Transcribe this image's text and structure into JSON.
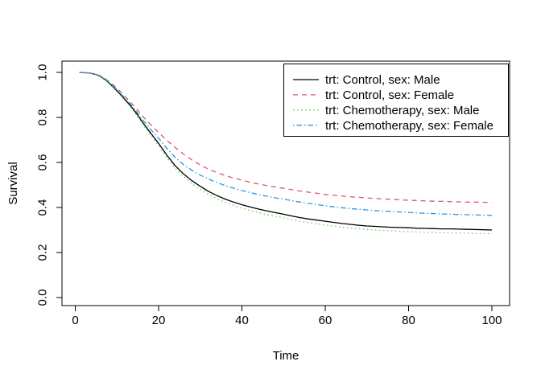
{
  "window": {
    "background": "#ffffff",
    "foreground": "#000000"
  },
  "chart_data": {
    "type": "line",
    "title": "",
    "xlabel": "Time",
    "ylabel": "Survival",
    "grid": false,
    "x_axis": {
      "range": [
        0,
        100
      ],
      "tick_values": [
        0,
        20,
        40,
        60,
        80,
        100
      ],
      "tick_labels": [
        "0",
        "20",
        "40",
        "60",
        "80",
        "100"
      ]
    },
    "y_axis": {
      "range": [
        0.0,
        1.0
      ],
      "tick_values": [
        0.0,
        0.2,
        0.4,
        0.6,
        0.8,
        1.0
      ],
      "tick_labels": [
        "0.0",
        "0.2",
        "0.4",
        "0.6",
        "0.8",
        "1.0"
      ]
    },
    "legend": {
      "position": "topright",
      "border": true,
      "background": "#ffffff"
    },
    "series": [
      {
        "name": "trt: Control, sex: Male",
        "color": "#000000",
        "linetype": "solid",
        "points": [
          [
            1,
            1.0
          ],
          [
            2,
            0.999
          ],
          [
            3,
            0.998
          ],
          [
            4,
            0.995
          ],
          [
            5,
            0.99
          ],
          [
            6,
            0.982
          ],
          [
            7,
            0.97
          ],
          [
            8,
            0.955
          ],
          [
            9,
            0.937
          ],
          [
            10,
            0.918
          ],
          [
            11,
            0.899
          ],
          [
            12,
            0.878
          ],
          [
            13,
            0.857
          ],
          [
            14,
            0.835
          ],
          [
            15,
            0.81
          ],
          [
            16,
            0.782
          ],
          [
            17,
            0.757
          ],
          [
            18,
            0.733
          ],
          [
            19,
            0.709
          ],
          [
            20,
            0.685
          ],
          [
            22,
            0.632
          ],
          [
            24,
            0.585
          ],
          [
            26,
            0.549
          ],
          [
            28,
            0.519
          ],
          [
            30,
            0.494
          ],
          [
            32,
            0.471
          ],
          [
            34,
            0.453
          ],
          [
            36,
            0.437
          ],
          [
            38,
            0.424
          ],
          [
            40,
            0.412
          ],
          [
            42,
            0.402
          ],
          [
            44,
            0.393
          ],
          [
            46,
            0.385
          ],
          [
            48,
            0.377
          ],
          [
            50,
            0.37
          ],
          [
            52,
            0.362
          ],
          [
            54,
            0.355
          ],
          [
            56,
            0.349
          ],
          [
            58,
            0.344
          ],
          [
            60,
            0.339
          ],
          [
            62,
            0.334
          ],
          [
            64,
            0.329
          ],
          [
            66,
            0.325
          ],
          [
            68,
            0.321
          ],
          [
            70,
            0.318
          ],
          [
            72,
            0.316
          ],
          [
            74,
            0.314
          ],
          [
            76,
            0.312
          ],
          [
            78,
            0.311
          ],
          [
            80,
            0.31
          ],
          [
            82,
            0.308
          ],
          [
            84,
            0.307
          ],
          [
            86,
            0.306
          ],
          [
            88,
            0.305
          ],
          [
            90,
            0.305
          ],
          [
            92,
            0.304
          ],
          [
            94,
            0.303
          ],
          [
            96,
            0.302
          ],
          [
            98,
            0.301
          ],
          [
            100,
            0.3
          ]
        ]
      },
      {
        "name": "trt: Control, sex: Female",
        "color": "#DF536B",
        "linetype": "dashed",
        "points": [
          [
            1,
            1.0
          ],
          [
            2,
            0.999
          ],
          [
            3,
            0.998
          ],
          [
            4,
            0.996
          ],
          [
            5,
            0.992
          ],
          [
            6,
            0.985
          ],
          [
            7,
            0.974
          ],
          [
            8,
            0.961
          ],
          [
            9,
            0.946
          ],
          [
            10,
            0.929
          ],
          [
            11,
            0.911
          ],
          [
            12,
            0.892
          ],
          [
            13,
            0.873
          ],
          [
            14,
            0.853
          ],
          [
            15,
            0.832
          ],
          [
            16,
            0.809
          ],
          [
            17,
            0.789
          ],
          [
            18,
            0.77
          ],
          [
            19,
            0.751
          ],
          [
            20,
            0.733
          ],
          [
            22,
            0.698
          ],
          [
            24,
            0.666
          ],
          [
            26,
            0.637
          ],
          [
            28,
            0.611
          ],
          [
            30,
            0.589
          ],
          [
            32,
            0.57
          ],
          [
            34,
            0.555
          ],
          [
            36,
            0.542
          ],
          [
            38,
            0.531
          ],
          [
            40,
            0.521
          ],
          [
            42,
            0.512
          ],
          [
            44,
            0.504
          ],
          [
            46,
            0.497
          ],
          [
            48,
            0.491
          ],
          [
            50,
            0.485
          ],
          [
            52,
            0.479
          ],
          [
            54,
            0.473
          ],
          [
            56,
            0.468
          ],
          [
            58,
            0.463
          ],
          [
            60,
            0.458
          ],
          [
            62,
            0.454
          ],
          [
            64,
            0.451
          ],
          [
            66,
            0.448
          ],
          [
            68,
            0.445
          ],
          [
            70,
            0.442
          ],
          [
            72,
            0.44
          ],
          [
            74,
            0.438
          ],
          [
            76,
            0.436
          ],
          [
            78,
            0.434
          ],
          [
            80,
            0.432
          ],
          [
            82,
            0.431
          ],
          [
            84,
            0.429
          ],
          [
            86,
            0.428
          ],
          [
            88,
            0.427
          ],
          [
            90,
            0.426
          ],
          [
            92,
            0.425
          ],
          [
            94,
            0.424
          ],
          [
            96,
            0.424
          ],
          [
            98,
            0.423
          ],
          [
            100,
            0.422
          ]
        ]
      },
      {
        "name": "trt: Chemotherapy, sex: Male",
        "color": "#61D04F",
        "linetype": "dotted",
        "points": [
          [
            1,
            1.0
          ],
          [
            2,
            0.999
          ],
          [
            3,
            0.997
          ],
          [
            4,
            0.994
          ],
          [
            5,
            0.989
          ],
          [
            6,
            0.98
          ],
          [
            7,
            0.968
          ],
          [
            8,
            0.952
          ],
          [
            9,
            0.934
          ],
          [
            10,
            0.914
          ],
          [
            11,
            0.894
          ],
          [
            12,
            0.873
          ],
          [
            13,
            0.851
          ],
          [
            14,
            0.828
          ],
          [
            15,
            0.803
          ],
          [
            16,
            0.775
          ],
          [
            17,
            0.749
          ],
          [
            18,
            0.724
          ],
          [
            19,
            0.699
          ],
          [
            20,
            0.675
          ],
          [
            22,
            0.622
          ],
          [
            24,
            0.574
          ],
          [
            26,
            0.537
          ],
          [
            28,
            0.506
          ],
          [
            30,
            0.48
          ],
          [
            32,
            0.457
          ],
          [
            34,
            0.439
          ],
          [
            36,
            0.422
          ],
          [
            38,
            0.409
          ],
          [
            40,
            0.397
          ],
          [
            42,
            0.386
          ],
          [
            44,
            0.377
          ],
          [
            46,
            0.368
          ],
          [
            48,
            0.361
          ],
          [
            50,
            0.354
          ],
          [
            52,
            0.346
          ],
          [
            54,
            0.339
          ],
          [
            56,
            0.333
          ],
          [
            58,
            0.327
          ],
          [
            60,
            0.322
          ],
          [
            62,
            0.317
          ],
          [
            64,
            0.312
          ],
          [
            66,
            0.308
          ],
          [
            68,
            0.305
          ],
          [
            70,
            0.302
          ],
          [
            72,
            0.3
          ],
          [
            74,
            0.298
          ],
          [
            76,
            0.296
          ],
          [
            78,
            0.294
          ],
          [
            80,
            0.293
          ],
          [
            82,
            0.291
          ],
          [
            84,
            0.29
          ],
          [
            86,
            0.289
          ],
          [
            88,
            0.288
          ],
          [
            90,
            0.287
          ],
          [
            92,
            0.286
          ],
          [
            94,
            0.286
          ],
          [
            96,
            0.285
          ],
          [
            98,
            0.284
          ],
          [
            100,
            0.284
          ]
        ]
      },
      {
        "name": "trt: Chemotherapy, sex: Female",
        "color": "#2297E6",
        "linetype": "dashdot",
        "points": [
          [
            1,
            1.0
          ],
          [
            2,
            0.999
          ],
          [
            3,
            0.998
          ],
          [
            4,
            0.995
          ],
          [
            5,
            0.991
          ],
          [
            6,
            0.983
          ],
          [
            7,
            0.972
          ],
          [
            8,
            0.958
          ],
          [
            9,
            0.941
          ],
          [
            10,
            0.923
          ],
          [
            11,
            0.904
          ],
          [
            12,
            0.884
          ],
          [
            13,
            0.864
          ],
          [
            14,
            0.842
          ],
          [
            15,
            0.819
          ],
          [
            16,
            0.793
          ],
          [
            17,
            0.771
          ],
          [
            18,
            0.749
          ],
          [
            19,
            0.728
          ],
          [
            20,
            0.708
          ],
          [
            22,
            0.662
          ],
          [
            24,
            0.622
          ],
          [
            26,
            0.59
          ],
          [
            28,
            0.565
          ],
          [
            30,
            0.544
          ],
          [
            32,
            0.526
          ],
          [
            34,
            0.511
          ],
          [
            36,
            0.497
          ],
          [
            38,
            0.486
          ],
          [
            40,
            0.475
          ],
          [
            42,
            0.466
          ],
          [
            44,
            0.457
          ],
          [
            46,
            0.45
          ],
          [
            48,
            0.443
          ],
          [
            50,
            0.437
          ],
          [
            52,
            0.43
          ],
          [
            54,
            0.424
          ],
          [
            56,
            0.418
          ],
          [
            58,
            0.413
          ],
          [
            60,
            0.408
          ],
          [
            62,
            0.403
          ],
          [
            64,
            0.399
          ],
          [
            66,
            0.395
          ],
          [
            68,
            0.392
          ],
          [
            70,
            0.389
          ],
          [
            72,
            0.386
          ],
          [
            74,
            0.384
          ],
          [
            76,
            0.382
          ],
          [
            78,
            0.38
          ],
          [
            80,
            0.378
          ],
          [
            82,
            0.376
          ],
          [
            84,
            0.374
          ],
          [
            86,
            0.373
          ],
          [
            88,
            0.371
          ],
          [
            90,
            0.37
          ],
          [
            92,
            0.369
          ],
          [
            94,
            0.368
          ],
          [
            96,
            0.367
          ],
          [
            98,
            0.366
          ],
          [
            100,
            0.365
          ]
        ]
      }
    ]
  }
}
